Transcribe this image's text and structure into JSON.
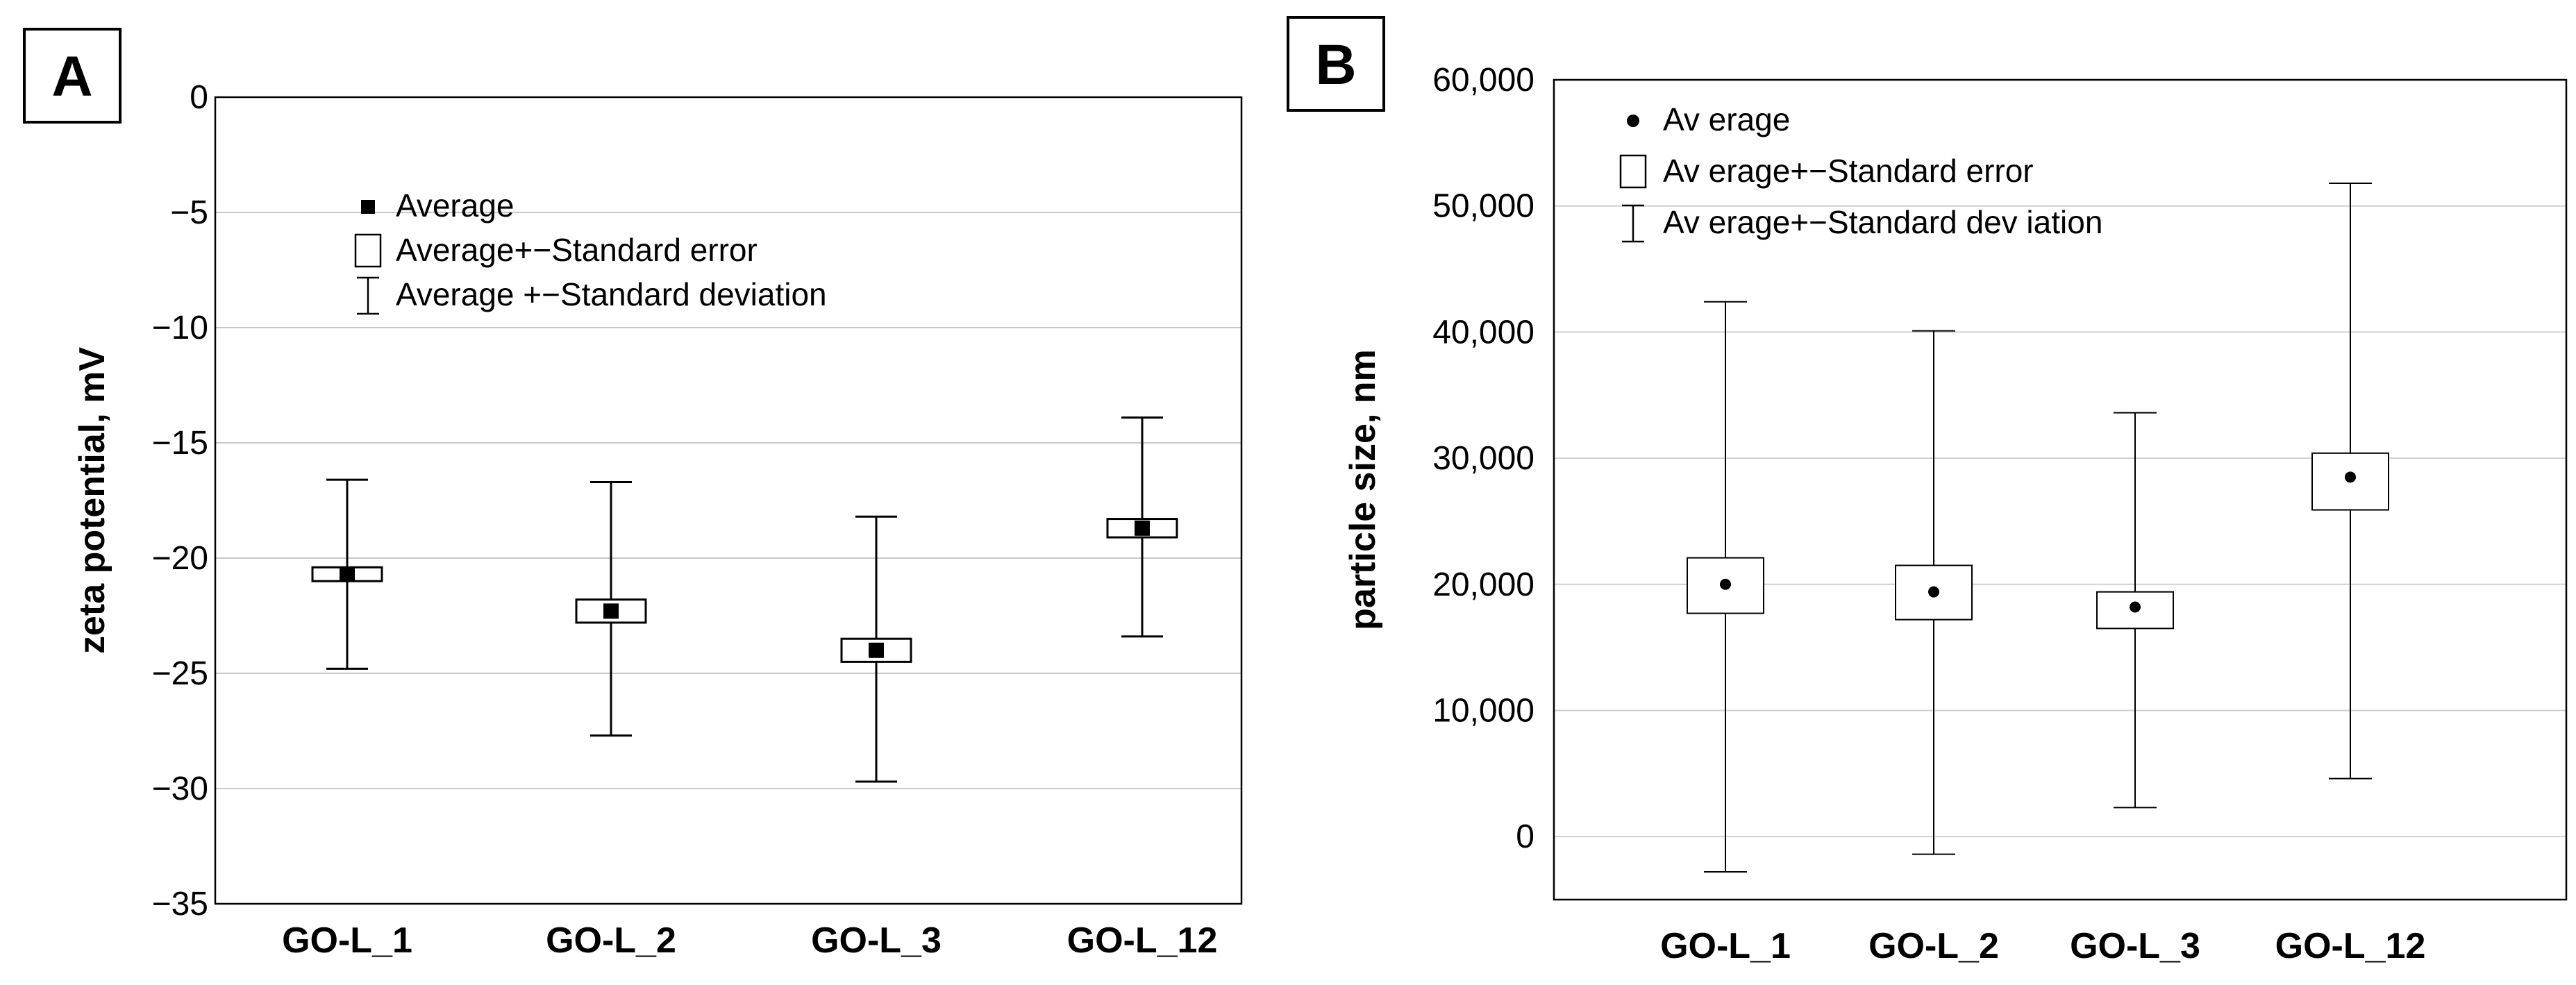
{
  "chart_data": [
    {
      "panel_label": "A",
      "type": "box",
      "ylabel": "zeta potential, mV",
      "ylim": [
        -35,
        0
      ],
      "yticks": [
        0,
        -5,
        -10,
        -15,
        -20,
        -25,
        -30,
        -35
      ],
      "ytick_labels": [
        "0",
        "−5",
        "−10",
        "−15",
        "−20",
        "−25",
        "−30",
        "−35"
      ],
      "grid": true,
      "legend": [
        {
          "marker": "square",
          "label": "Average"
        },
        {
          "marker": "box",
          "label": "Average+−Standard error"
        },
        {
          "marker": "whisker",
          "label": "Average +−Standard deviation"
        }
      ],
      "categories": [
        "GO-L_1",
        "GO-L_2",
        "GO-L_3",
        "GO-L_12"
      ],
      "series": [
        {
          "category": "GO-L_1",
          "mean": -20.7,
          "se_low": -21.0,
          "se_high": -20.4,
          "sd_low": -24.8,
          "sd_high": -16.6
        },
        {
          "category": "GO-L_2",
          "mean": -22.3,
          "se_low": -22.8,
          "se_high": -21.8,
          "sd_low": -27.7,
          "sd_high": -16.7
        },
        {
          "category": "GO-L_3",
          "mean": -24.0,
          "se_low": -24.5,
          "se_high": -23.5,
          "sd_low": -29.7,
          "sd_high": -18.2
        },
        {
          "category": "GO-L_12",
          "mean": -18.7,
          "se_low": -19.1,
          "se_high": -18.3,
          "sd_low": -23.4,
          "sd_high": -13.9
        }
      ]
    },
    {
      "panel_label": "B",
      "type": "box",
      "ylabel": "particle size, nm",
      "ylim": [
        -5000,
        60000
      ],
      "yticks": [
        0,
        10000,
        20000,
        30000,
        40000,
        50000,
        60000
      ],
      "ytick_labels": [
        "0",
        "10,000",
        "20,000",
        "30,000",
        "40,000",
        "50,000",
        "60,000"
      ],
      "grid": true,
      "legend": [
        {
          "marker": "dot",
          "label": "Av erage"
        },
        {
          "marker": "box",
          "label": "Av erage+−Standard error"
        },
        {
          "marker": "whisker",
          "label": "Av erage+−Standard dev iation"
        }
      ],
      "categories": [
        "GO-L_1",
        "GO-L_2",
        "GO-L_3",
        "GO-L_12"
      ],
      "series": [
        {
          "category": "GO-L_1",
          "mean": 20000,
          "se_low": 17700,
          "se_high": 22100,
          "sd_low": -2800,
          "sd_high": 42400
        },
        {
          "category": "GO-L_2",
          "mean": 19400,
          "se_low": 17200,
          "se_high": 21500,
          "sd_low": -1400,
          "sd_high": 40100
        },
        {
          "category": "GO-L_3",
          "mean": 18200,
          "se_low": 16500,
          "se_high": 19400,
          "sd_low": 2300,
          "sd_high": 33600
        },
        {
          "category": "GO-L_12",
          "mean": 28500,
          "se_low": 25900,
          "se_high": 30400,
          "sd_low": 4600,
          "sd_high": 51800
        }
      ]
    }
  ]
}
